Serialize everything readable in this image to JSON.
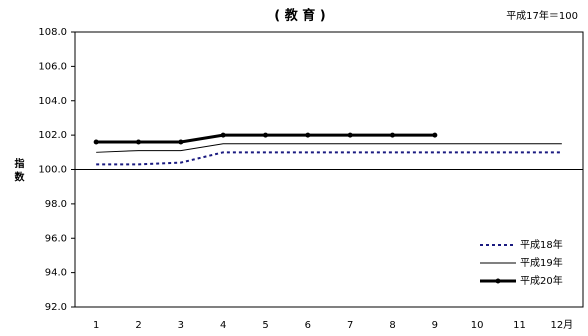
{
  "chart_data": {
    "type": "line",
    "title": "( 教 育 )",
    "note": "平成17年＝100",
    "ylabel": "指 数",
    "categories": [
      "1",
      "2",
      "3",
      "4",
      "5",
      "6",
      "7",
      "8",
      "9",
      "10",
      "11",
      "12月"
    ],
    "ylim": [
      92,
      108
    ],
    "yticks": [
      {
        "value": 92,
        "label": "92.0"
      },
      {
        "value": 94,
        "label": "94.0"
      },
      {
        "value": 96,
        "label": "96.0"
      },
      {
        "value": 98,
        "label": "98.0"
      },
      {
        "value": 100,
        "label": "100.0"
      },
      {
        "value": 102,
        "label": "102.0"
      },
      {
        "value": 104,
        "label": "104.0"
      },
      {
        "value": 106,
        "label": "106.0"
      },
      {
        "value": 108,
        "label": "108.0"
      }
    ],
    "grid": false,
    "legend": "lower right",
    "series": [
      {
        "name": "平成18年",
        "color": "#1a1a80",
        "style": "dotted",
        "values": [
          100.3,
          100.3,
          100.4,
          101.0,
          101.0,
          101.0,
          101.0,
          101.0,
          101.0,
          101.0,
          101.0,
          101.0
        ]
      },
      {
        "name": "平成19年",
        "color": "#000000",
        "style": "thin",
        "values": [
          101.0,
          101.1,
          101.1,
          101.5,
          101.5,
          101.5,
          101.5,
          101.5,
          101.5,
          101.5,
          101.5,
          101.5
        ]
      },
      {
        "name": "平成20年",
        "color": "#000000",
        "style": "thick",
        "values": [
          101.6,
          101.6,
          101.6,
          102.0,
          102.0,
          102.0,
          102.0,
          102.0,
          102.0,
          null,
          null,
          null
        ]
      }
    ]
  }
}
